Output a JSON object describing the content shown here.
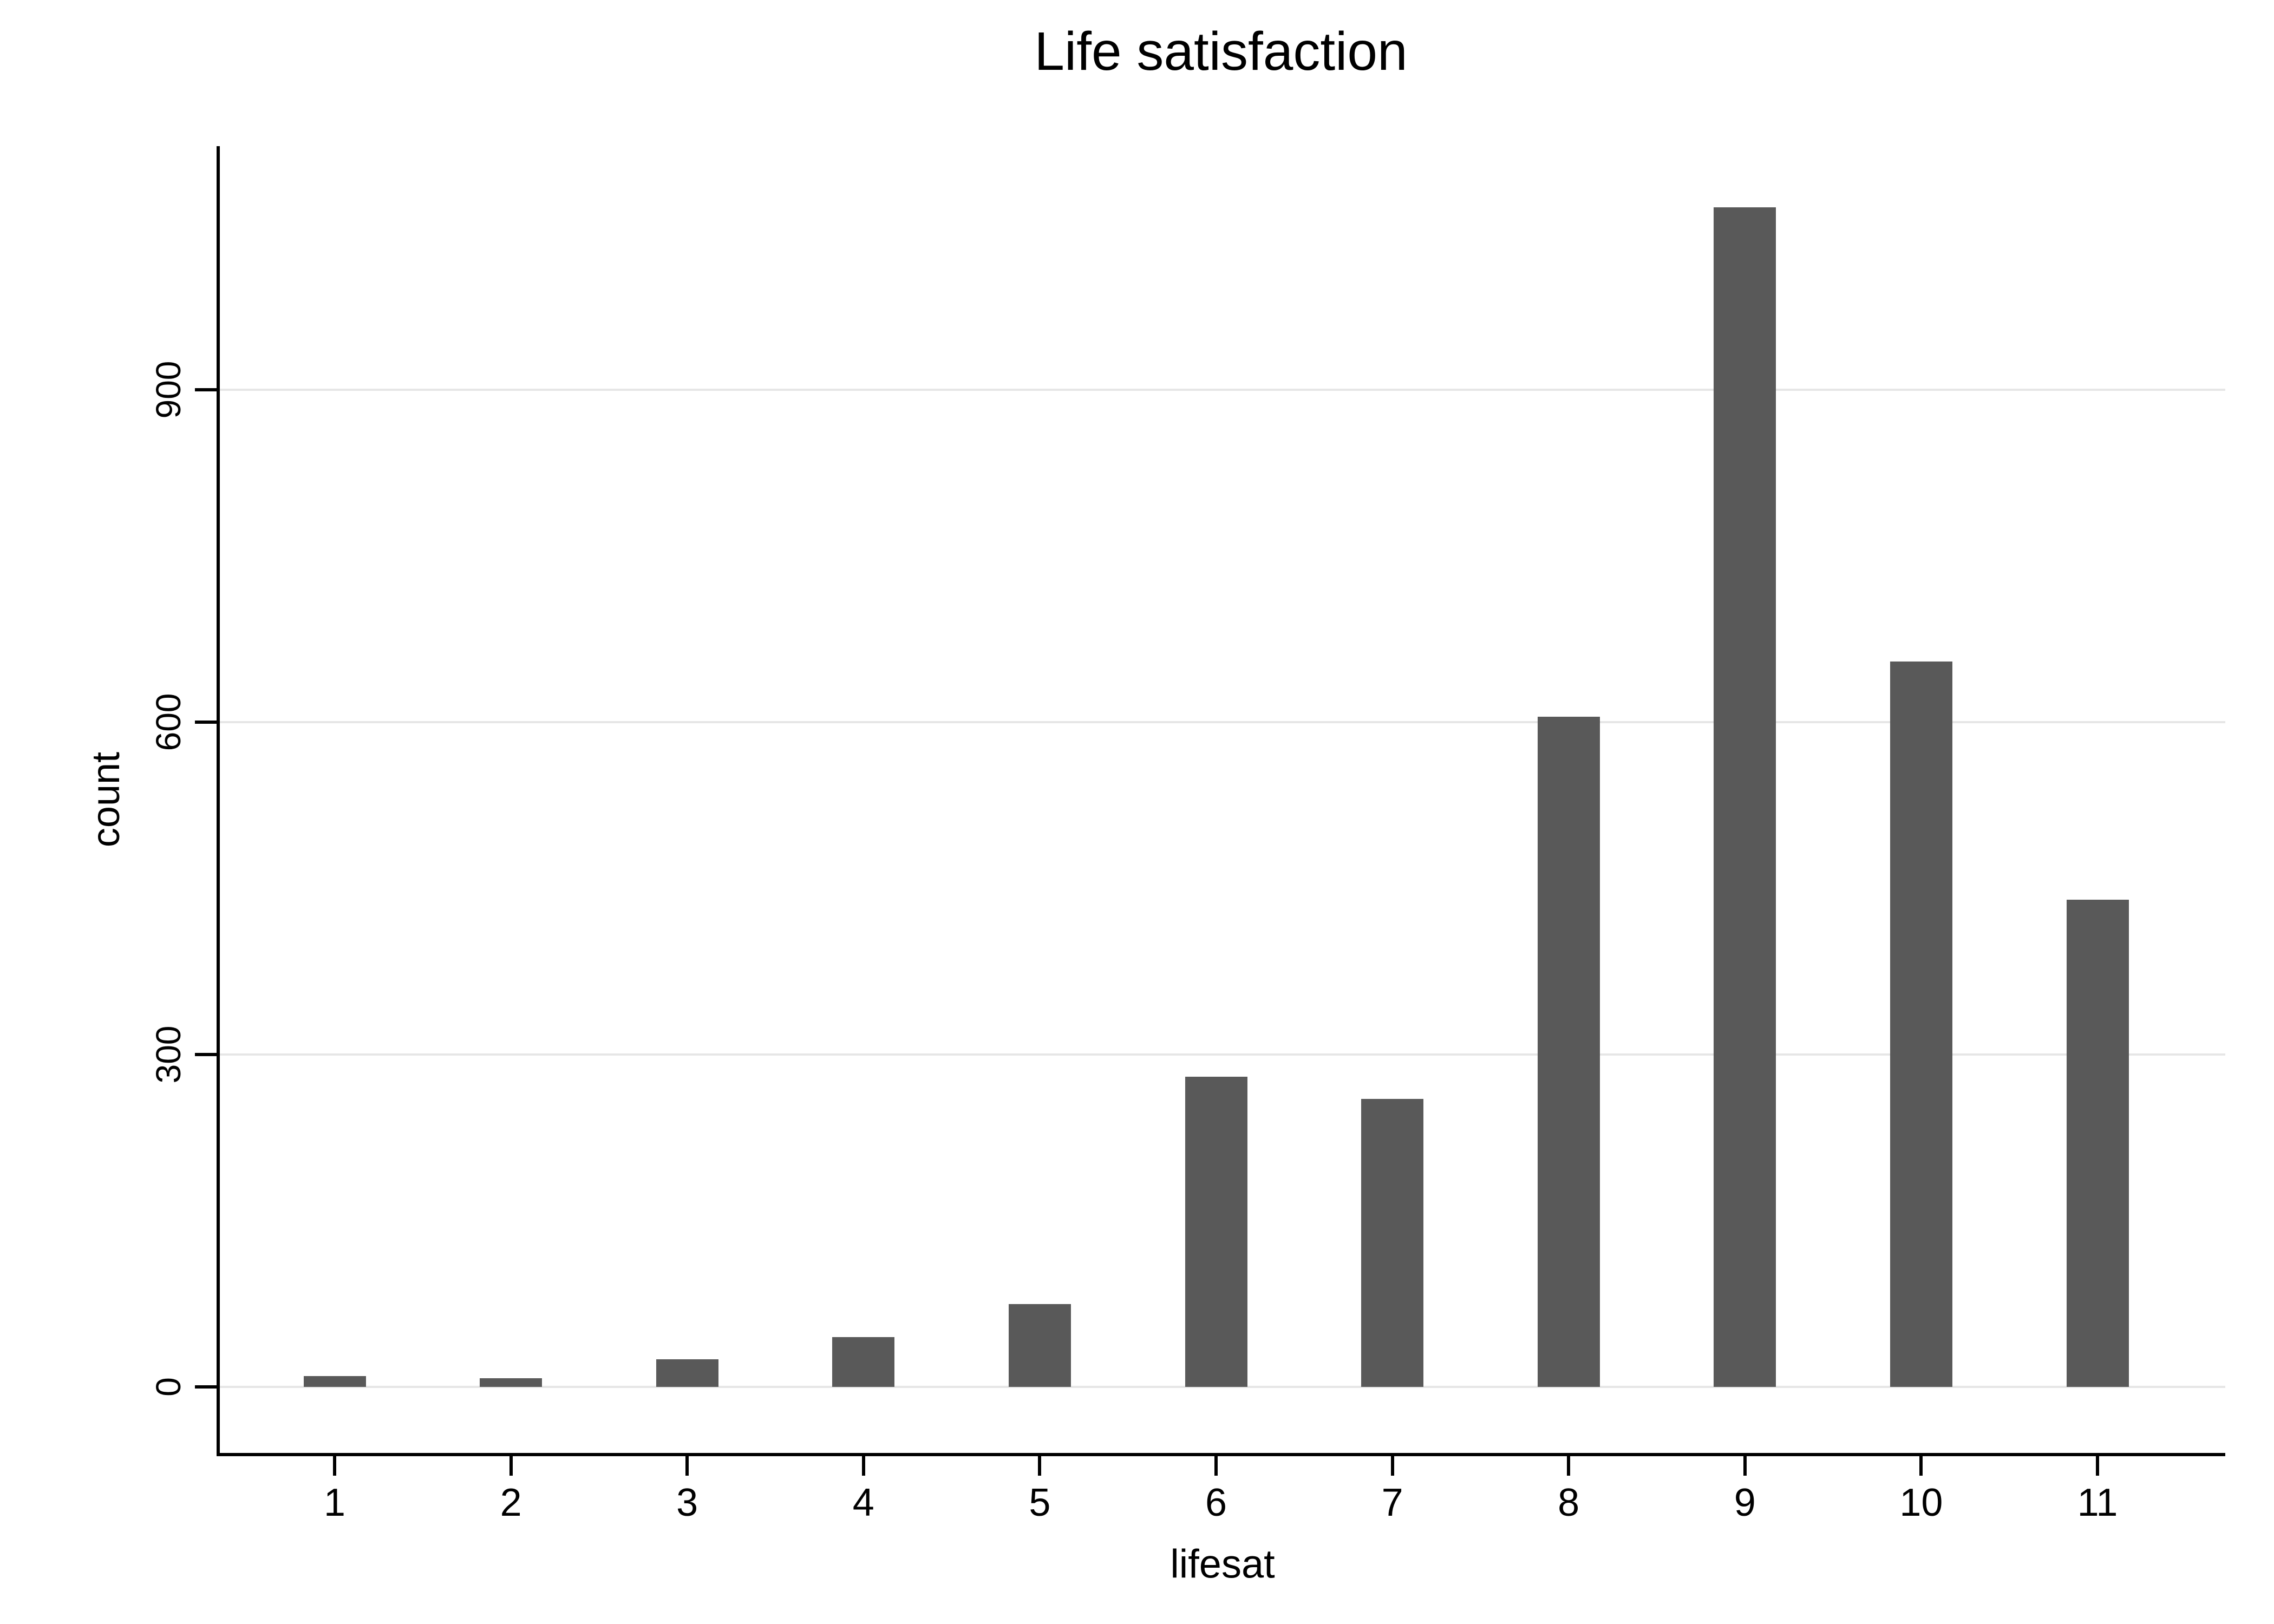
{
  "chart_data": {
    "type": "bar",
    "title": "Life satisfaction",
    "xlabel": "lifesat",
    "ylabel": "count",
    "categories": [
      "1",
      "2",
      "3",
      "4",
      "5",
      "6",
      "7",
      "8",
      "9",
      "10",
      "11"
    ],
    "values": [
      10,
      8,
      25,
      45,
      75,
      280,
      260,
      605,
      1065,
      655,
      440
    ],
    "yticks": [
      0,
      300,
      600,
      900
    ],
    "ylim": [
      0,
      1120
    ],
    "grid": true,
    "legend": "none",
    "bar_color": "#595959",
    "grid_color": "#e6e6e6",
    "axis_color": "#000000",
    "background": "#ffffff"
  }
}
